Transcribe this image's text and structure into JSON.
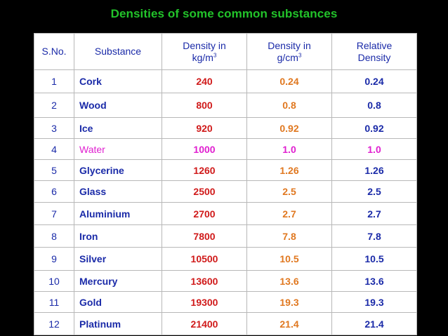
{
  "title": "Densities of some common substances",
  "headers": {
    "sno": "S.No.",
    "substance": "Substance",
    "kgm3_line1": "Density in",
    "kgm3_line2": "kg/m",
    "kgm3_sup": "3",
    "gcm3_line1": "Density in",
    "gcm3_line2": "g/cm",
    "gcm3_sup": "3",
    "rel_line1": "Relative",
    "rel_line2": "Density"
  },
  "rows": [
    {
      "sno": "1",
      "substance": "Cork",
      "kgm3": "240",
      "gcm3": "0.24",
      "rel": "0.24"
    },
    {
      "sno": "2",
      "substance": "Wood",
      "kgm3": "800",
      "gcm3": "0.8",
      "rel": "0.8"
    },
    {
      "sno": "3",
      "substance": "Ice",
      "kgm3": "920",
      "gcm3": "0.92",
      "rel": "0.92"
    },
    {
      "sno": "4",
      "substance": "Water",
      "kgm3": "1000",
      "gcm3": "1.0",
      "rel": "1.0"
    },
    {
      "sno": "5",
      "substance": "Glycerine",
      "kgm3": "1260",
      "gcm3": "1.26",
      "rel": "1.26"
    },
    {
      "sno": "6",
      "substance": "Glass",
      "kgm3": "2500",
      "gcm3": "2.5",
      "rel": "2.5"
    },
    {
      "sno": "7",
      "substance": "Aluminium",
      "kgm3": "2700",
      "gcm3": "2.7",
      "rel": "2.7"
    },
    {
      "sno": "8",
      "substance": "Iron",
      "kgm3": "7800",
      "gcm3": "7.8",
      "rel": "7.8"
    },
    {
      "sno": "9",
      "substance": "Silver",
      "kgm3": "10500",
      "gcm3": "10.5",
      "rel": "10.5"
    },
    {
      "sno": "10",
      "substance": "Mercury",
      "kgm3": "13600",
      "gcm3": "13.6",
      "rel": "13.6"
    },
    {
      "sno": "11",
      "substance": "Gold",
      "kgm3": "19300",
      "gcm3": "19.3",
      "rel": "19.3"
    },
    {
      "sno": "12",
      "substance": "Platinum",
      "kgm3": "21400",
      "gcm3": "21.4",
      "rel": "21.4"
    }
  ],
  "colors": {
    "title": "#22c32a",
    "label": "#1a2aa8",
    "kgm3": "#d01a1a",
    "gcm3": "#e07820",
    "water": "#e020d0"
  }
}
